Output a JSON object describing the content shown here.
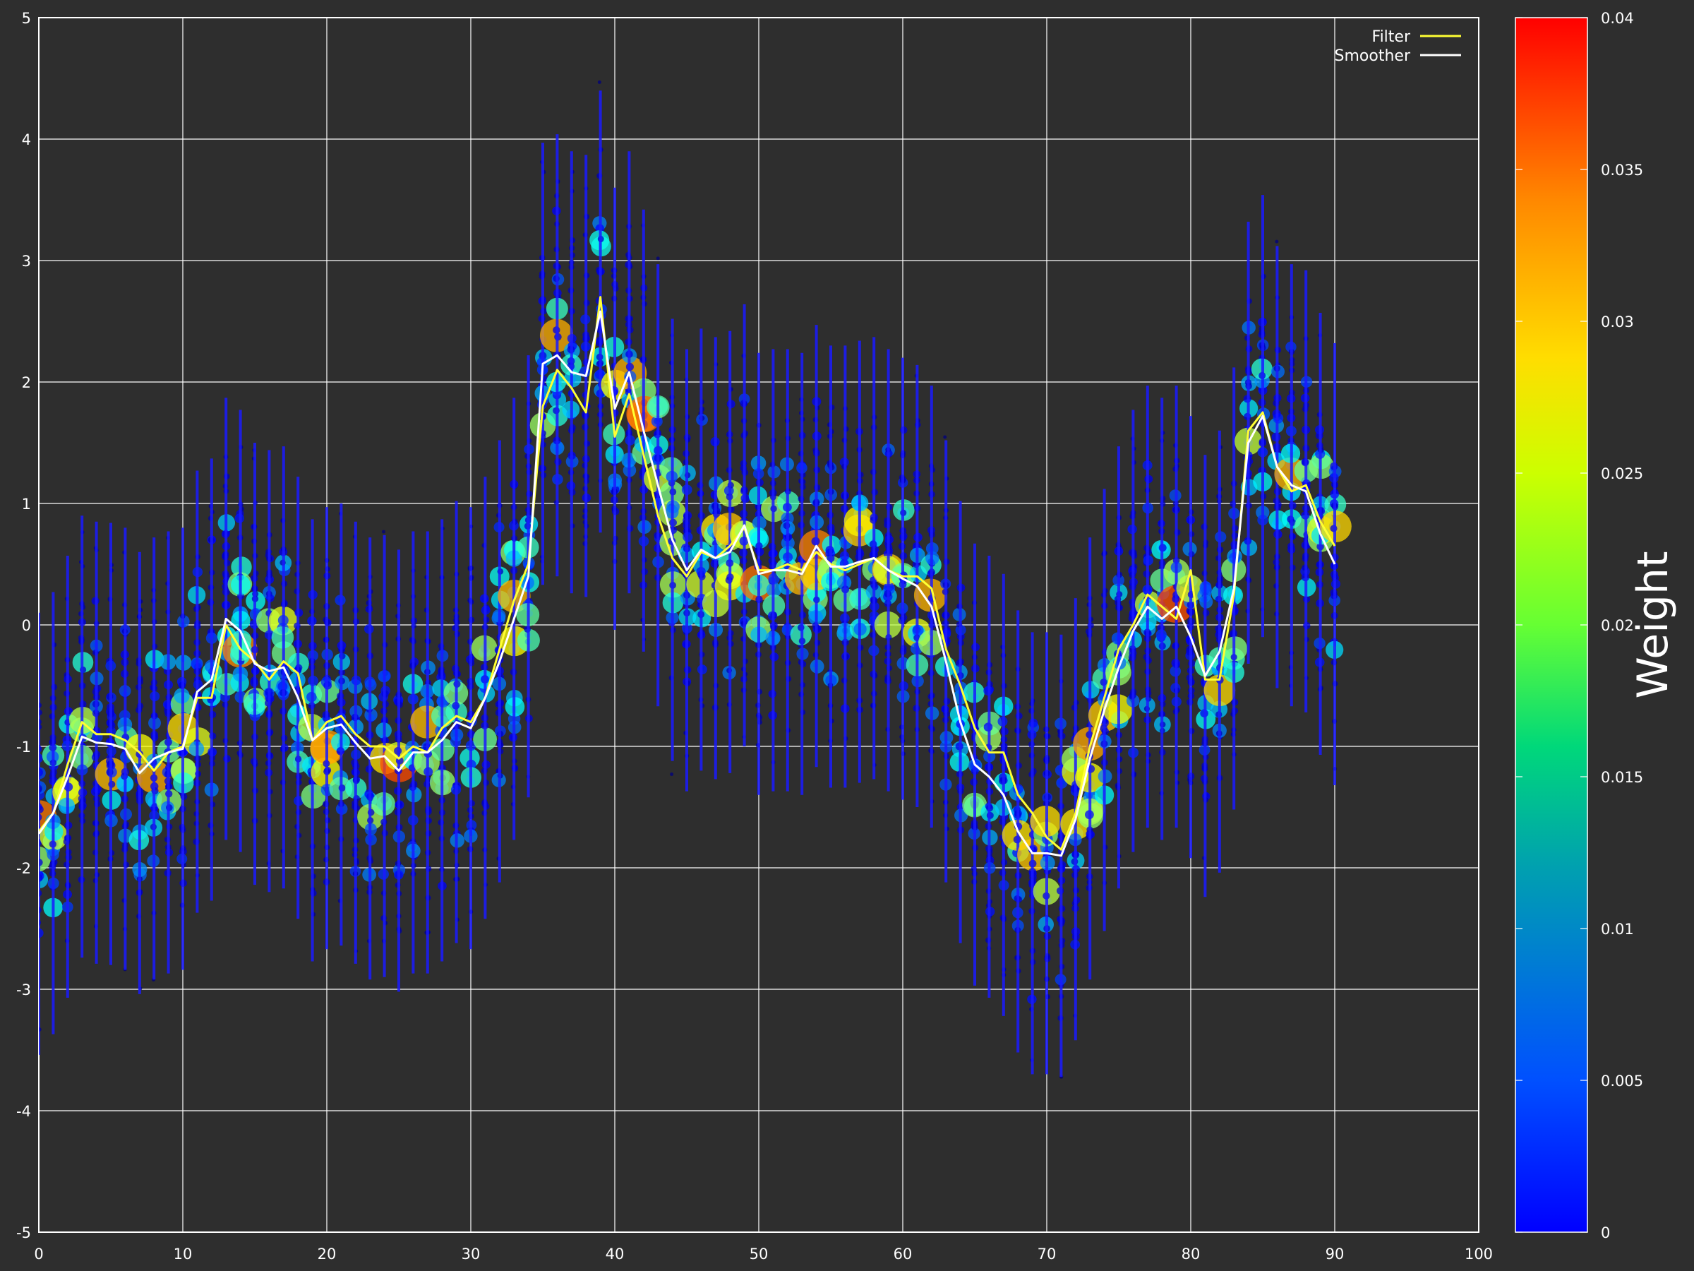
{
  "chart_data": {
    "type": "scatter",
    "title": "",
    "xlabel": "",
    "ylabel": "",
    "xlim": [
      0,
      100
    ],
    "ylim": [
      -5,
      5
    ],
    "grid": true,
    "background_color": "#2e2e2e",
    "grid_color": "#ffffff",
    "x_ticks": [
      "0",
      "10",
      "20",
      "30",
      "40",
      "50",
      "60",
      "70",
      "80",
      "90",
      "100"
    ],
    "y_ticks": [
      "5",
      "4",
      "3",
      "2",
      "1",
      "0",
      "-1",
      "-2",
      "-3",
      "-4",
      "-5"
    ],
    "legend": {
      "placement": "top-right",
      "entries": [
        "Filter",
        "Smoother"
      ]
    },
    "series": [
      {
        "name": "Filter",
        "type": "line",
        "color": "#ffff33",
        "x": [
          0,
          1,
          2,
          3,
          4,
          5,
          6,
          7,
          8,
          9,
          10,
          11,
          12,
          13,
          14,
          15,
          16,
          17,
          18,
          19,
          20,
          21,
          22,
          23,
          24,
          25,
          26,
          27,
          28,
          29,
          30,
          31,
          32,
          33,
          34,
          35,
          36,
          37,
          38,
          39,
          40,
          41,
          42,
          43,
          44,
          45,
          46,
          47,
          48,
          49,
          50,
          51,
          52,
          53,
          54,
          55,
          56,
          57,
          58,
          59,
          60,
          61,
          62,
          63,
          64,
          65,
          66,
          67,
          68,
          69,
          70,
          71,
          72,
          73,
          74,
          75,
          76,
          77,
          78,
          79,
          80,
          81,
          82,
          83,
          84,
          85,
          86,
          87,
          88,
          89,
          90
        ],
        "y": [
          -1.7,
          -1.55,
          -1.15,
          -0.8,
          -0.9,
          -0.9,
          -0.95,
          -1.05,
          -1.2,
          -1.05,
          -1.0,
          -0.6,
          -0.6,
          0.0,
          -0.2,
          -0.3,
          -0.45,
          -0.3,
          -0.4,
          -0.95,
          -0.8,
          -0.75,
          -0.9,
          -1.0,
          -1.0,
          -1.1,
          -1.0,
          -1.05,
          -0.85,
          -0.75,
          -0.8,
          -0.6,
          -0.2,
          0.2,
          0.5,
          1.8,
          2.1,
          1.95,
          1.75,
          2.7,
          1.55,
          1.9,
          1.4,
          0.9,
          0.55,
          0.4,
          0.6,
          0.55,
          0.65,
          0.8,
          0.45,
          0.45,
          0.5,
          0.45,
          0.6,
          0.5,
          0.45,
          0.5,
          0.55,
          0.45,
          0.4,
          0.4,
          0.3,
          -0.2,
          -0.5,
          -0.85,
          -1.05,
          -1.05,
          -1.4,
          -1.55,
          -1.75,
          -1.85,
          -1.55,
          -1.0,
          -0.6,
          -0.2,
          0.0,
          0.25,
          0.15,
          0.05,
          0.45,
          -0.45,
          -0.45,
          0.25,
          1.6,
          1.75,
          1.3,
          1.1,
          1.15,
          0.85,
          0.65
        ]
      },
      {
        "name": "Smoother",
        "type": "line",
        "color": "#ffffff",
        "x": [
          0,
          1,
          2,
          3,
          4,
          5,
          6,
          7,
          8,
          9,
          10,
          11,
          12,
          13,
          14,
          15,
          16,
          17,
          18,
          19,
          20,
          21,
          22,
          23,
          24,
          25,
          26,
          27,
          28,
          29,
          30,
          31,
          32,
          33,
          34,
          35,
          36,
          37,
          38,
          39,
          40,
          41,
          42,
          43,
          44,
          45,
          46,
          47,
          48,
          49,
          50,
          51,
          52,
          53,
          54,
          55,
          56,
          57,
          58,
          59,
          60,
          61,
          62,
          63,
          64,
          65,
          66,
          67,
          68,
          69,
          70,
          71,
          72,
          73,
          74,
          75,
          76,
          77,
          78,
          79,
          80,
          81,
          82,
          83,
          84,
          85,
          86,
          87,
          88,
          89,
          90
        ],
        "y": [
          -1.72,
          -1.55,
          -1.25,
          -0.92,
          -0.97,
          -0.98,
          -1.02,
          -1.22,
          -1.1,
          -1.05,
          -1.02,
          -0.55,
          -0.45,
          0.05,
          -0.05,
          -0.32,
          -0.38,
          -0.35,
          -0.6,
          -0.95,
          -0.85,
          -0.82,
          -0.97,
          -1.1,
          -1.08,
          -1.2,
          -1.05,
          -1.05,
          -0.95,
          -0.8,
          -0.85,
          -0.6,
          -0.3,
          0.05,
          0.4,
          2.15,
          2.22,
          2.08,
          2.05,
          2.58,
          1.78,
          2.08,
          1.6,
          1.15,
          0.7,
          0.45,
          0.62,
          0.55,
          0.6,
          0.82,
          0.42,
          0.45,
          0.45,
          0.42,
          0.65,
          0.48,
          0.48,
          0.52,
          0.55,
          0.45,
          0.38,
          0.32,
          0.15,
          -0.3,
          -0.8,
          -1.15,
          -1.25,
          -1.4,
          -1.7,
          -1.88,
          -1.88,
          -1.9,
          -1.6,
          -1.1,
          -0.7,
          -0.35,
          -0.05,
          0.15,
          0.05,
          0.15,
          -0.1,
          -0.42,
          -0.22,
          0.3,
          1.5,
          1.72,
          1.3,
          1.15,
          1.1,
          0.75,
          0.5
        ]
      }
    ],
    "particles": {
      "description_x": "particle positions per time step",
      "x_range": [
        0,
        90
      ],
      "mean_y": "follows Smoother series",
      "spread_y": 1.4,
      "weight_range": [
        0,
        0.04
      ]
    },
    "colorbar": {
      "label": "Weight",
      "ticks": [
        "0.04",
        "0.035",
        "0.03",
        "0.025",
        "0.02",
        "0.015",
        "0.01",
        "0.005",
        "0"
      ],
      "range": [
        0,
        0.04
      ],
      "colormap": "jet"
    }
  }
}
